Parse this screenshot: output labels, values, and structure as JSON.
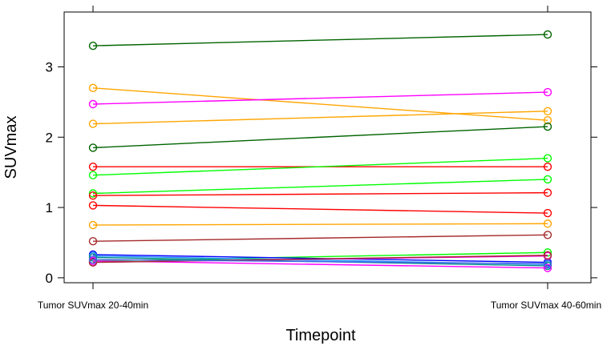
{
  "chart_data": {
    "type": "line",
    "xlabel": "Timepoint",
    "ylabel": "SUVmax",
    "categories": [
      "Tumor SUVmax 20-40min",
      "Tumor SUVmax 40-60min"
    ],
    "ylim": [
      -0.07,
      3.78
    ],
    "yticks": [
      0,
      1,
      2,
      3
    ],
    "grid": false,
    "series": [
      {
        "color": "#006400",
        "values": [
          3.3,
          3.46
        ]
      },
      {
        "color": "#FFA500",
        "values": [
          2.7,
          2.24
        ]
      },
      {
        "color": "#FF00FF",
        "values": [
          2.47,
          2.64
        ]
      },
      {
        "color": "#FFA500",
        "values": [
          2.19,
          2.37
        ]
      },
      {
        "color": "#006400",
        "values": [
          1.85,
          2.15
        ]
      },
      {
        "color": "#FF0000",
        "values": [
          1.58,
          1.58
        ]
      },
      {
        "color": "#00FF00",
        "values": [
          1.46,
          1.7
        ]
      },
      {
        "color": "#00FF00",
        "values": [
          1.2,
          1.4
        ]
      },
      {
        "color": "#FF0000",
        "values": [
          1.17,
          1.21
        ]
      },
      {
        "color": "#FF0000",
        "values": [
          1.03,
          0.92
        ]
      },
      {
        "color": "#FFA500",
        "values": [
          0.75,
          0.77
        ]
      },
      {
        "color": "#A52A2A",
        "values": [
          0.52,
          0.61
        ]
      },
      {
        "color": "#00FF00",
        "values": [
          0.24,
          0.36
        ]
      },
      {
        "color": "#0000FF",
        "values": [
          0.33,
          0.22
        ]
      },
      {
        "color": "#1E90FF",
        "values": [
          0.31,
          0.19
        ]
      },
      {
        "color": "#008B8B",
        "values": [
          0.29,
          0.17
        ]
      },
      {
        "color": "#FF00FF",
        "values": [
          0.24,
          0.14
        ]
      },
      {
        "color": "#FF00FF",
        "values": [
          0.22,
          0.31
        ]
      },
      {
        "color": "#A52A2A",
        "values": [
          0.22,
          0.32
        ]
      },
      {
        "color": "#4169E1",
        "values": [
          0.26,
          0.2
        ]
      }
    ]
  }
}
